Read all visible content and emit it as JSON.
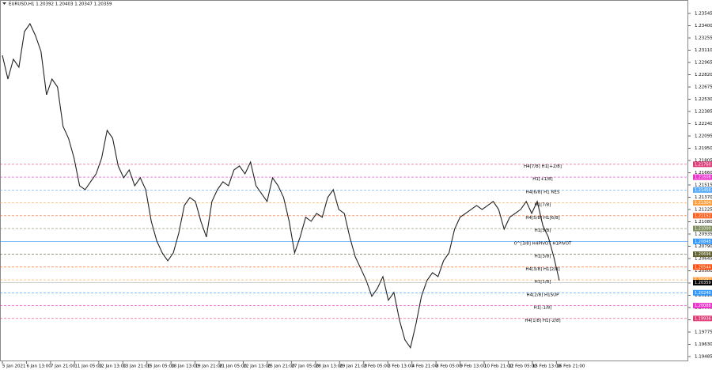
{
  "chart_data": {
    "type": "line",
    "title": "EURUSD,H1  1.20392 1.20403 1.20347 1.20359",
    "color": "#222222",
    "grid": false,
    "ylim": [
      1.19485,
      1.23545
    ],
    "yticks": [
      {
        "value": 1.23545,
        "label": "1.23545"
      },
      {
        "value": 1.234,
        "label": "1.23400"
      },
      {
        "value": 1.23255,
        "label": "1.23255"
      },
      {
        "value": 1.2311,
        "label": "1.23110"
      },
      {
        "value": 1.22965,
        "label": "1.22965"
      },
      {
        "value": 1.2282,
        "label": "1.22820"
      },
      {
        "value": 1.22675,
        "label": "1.22675"
      },
      {
        "value": 1.2253,
        "label": "1.22530"
      },
      {
        "value": 1.22385,
        "label": "1.22385"
      },
      {
        "value": 1.2224,
        "label": "1.22240"
      },
      {
        "value": 1.22095,
        "label": "1.22095"
      },
      {
        "value": 1.2195,
        "label": "1.21950"
      },
      {
        "value": 1.21805,
        "label": "1.21805"
      },
      {
        "value": 1.2166,
        "label": "1.21660"
      },
      {
        "value": 1.21515,
        "label": "1.21515"
      },
      {
        "value": 1.2137,
        "label": "1.21370"
      },
      {
        "value": 1.21225,
        "label": "1.21225"
      },
      {
        "value": 1.2108,
        "label": "1.21080"
      },
      {
        "value": 1.20935,
        "label": "1.20935"
      },
      {
        "value": 1.2079,
        "label": "1.20790"
      },
      {
        "value": 1.20645,
        "label": "1.20645"
      },
      {
        "value": 1.205,
        "label": "1.20500"
      },
      {
        "value": 1.20355,
        "label": "1.20355"
      },
      {
        "value": 1.2021,
        "label": "1.20210"
      },
      {
        "value": 1.20065,
        "label": "1.20065"
      },
      {
        "value": 1.1992,
        "label": "1.19920"
      },
      {
        "value": 1.19775,
        "label": "1.19775"
      },
      {
        "value": 1.1963,
        "label": "1.19630"
      },
      {
        "value": 1.19485,
        "label": "1.19485"
      }
    ],
    "x_labels": [
      "5 Jan 2021",
      "6 Jan 13:00",
      "7 Jan 21:00",
      "11 Jan 05:00",
      "12 Jan 13:00",
      "13 Jan 21:00",
      "15 Jan 05:00",
      "18 Jan 13:00",
      "19 Jan 21:00",
      "21 Jan 05:00",
      "22 Jan 13:00",
      "25 Jan 21:00",
      "27 Jan 05:00",
      "28 Jan 13:00",
      "29 Jan 21:00",
      "2 Feb 05:00",
      "3 Feb 13:00",
      "4 Feb 21:00",
      "8 Feb 05:00",
      "9 Feb 13:00",
      "10 Feb 21:00",
      "12 Feb 05:00",
      "15 Feb 13:00",
      "16 Feb 21:00"
    ],
    "close": [
      1.23049,
      1.22769,
      1.23003,
      1.22909,
      1.2333,
      1.23423,
      1.23283,
      1.23096,
      1.22582,
      1.22769,
      1.22675,
      1.22208,
      1.22068,
      1.21834,
      1.21507,
      1.2146,
      1.21553,
      1.21647,
      1.21834,
      1.22161,
      1.22068,
      1.2174,
      1.216,
      1.21694,
      1.21507,
      1.216,
      1.2146,
      1.21086,
      1.20852,
      1.20712,
      1.20618,
      1.20712,
      1.20946,
      1.21273,
      1.21366,
      1.2132,
      1.21086,
      1.20899,
      1.2132,
      1.2146,
      1.21553,
      1.21507,
      1.21694,
      1.2174,
      1.21647,
      1.21787,
      1.21507,
      1.21413,
      1.2132,
      1.216,
      1.21507,
      1.21366,
      1.21086,
      1.20712,
      1.20899,
      1.21133,
      1.21086,
      1.21179,
      1.21133,
      1.21366,
      1.2146,
      1.21226,
      1.21179,
      1.20899,
      1.20665,
      1.20525,
      1.20385,
      1.20198,
      1.20291,
      1.20431,
      1.20151,
      1.20244,
      1.19917,
      1.19683,
      1.1959,
      1.1987,
      1.20198,
      1.20385,
      1.20478,
      1.20431,
      1.20618,
      1.20712,
      1.20992,
      1.21133,
      1.21179,
      1.21226,
      1.21273,
      1.21226,
      1.21273,
      1.2132,
      1.21226,
      1.20992,
      1.21133,
      1.21179,
      1.21226,
      1.2132,
      1.21179,
      1.2132,
      1.21039,
      1.20899,
      1.20665,
      1.20385
    ],
    "last_price": {
      "value": 1.20359,
      "label": "1.20359"
    },
    "levels": [
      {
        "name": "H4[7/8] H1[+2/8]",
        "value": 1.2176,
        "value_label": "1.21760",
        "color": "#e0407a",
        "dashed": true
      },
      {
        "name": "H1[+1/8]",
        "value": 1.21608,
        "value_label": "1.21608",
        "color": "#ee33cc",
        "dashed": true
      },
      {
        "name": "H4[6/8] H1 RES",
        "value": 1.21456,
        "value_label": "1.21456",
        "color": "#55aaff",
        "dashed": true
      },
      {
        "name": "H1[7/8]",
        "value": 1.21304,
        "value_label": "1.21304",
        "color": "#ffa040",
        "dashed": true
      },
      {
        "name": "H4[5/8] H1[6/8]",
        "value": 1.21152,
        "value_label": "1.21152",
        "color": "#ff6020",
        "dashed": true
      },
      {
        "name": "H1[5/8]",
        "value": 1.21,
        "value_label": "1.21000",
        "color": "#7f8f60",
        "dashed": true
      },
      {
        "name": "0^[3/8] H4PIVOT H1PIVOT",
        "value": 1.20848,
        "value_label": "1.20848",
        "color": "#3399ff",
        "dashed": false
      },
      {
        "name": "H1[3/8]",
        "value": 1.20696,
        "value_label": "1.20696",
        "color": "#5f5f30",
        "dashed": true
      },
      {
        "name": "H4[3/8] H1[2/8]",
        "value": 1.20544,
        "value_label": "1.20544",
        "color": "#ff5010",
        "dashed": true
      },
      {
        "name": "H1[1/8]",
        "value": 1.20392,
        "value_label": "1.20392",
        "color": "#ffa040",
        "dashed": true
      },
      {
        "name": "H4[2/8] H1SUP",
        "value": 1.2024,
        "value_label": "1.20240",
        "color": "#3399ff",
        "dashed": true
      },
      {
        "name": "H1[-1/8]",
        "value": 1.20088,
        "value_label": "1.20088",
        "color": "#ee33cc",
        "dashed": true
      },
      {
        "name": "H4[1/8] H1[-2/8]",
        "value": 1.19936,
        "value_label": "1.19936",
        "color": "#e0407a",
        "dashed": true
      }
    ]
  }
}
